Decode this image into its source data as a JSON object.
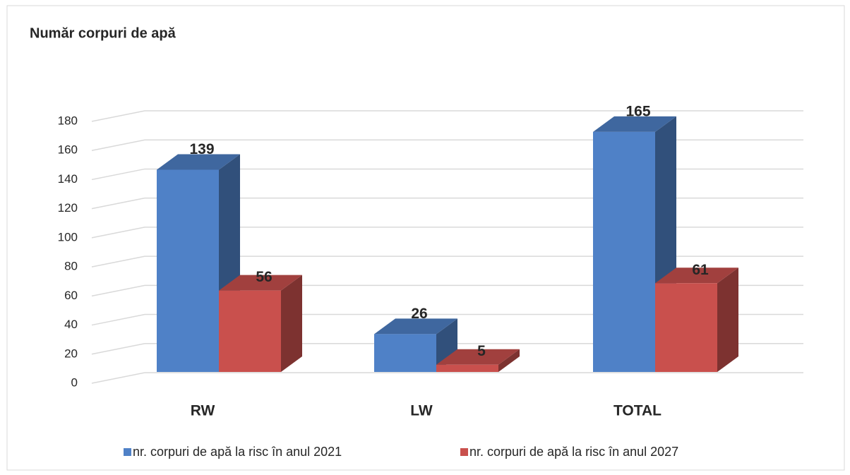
{
  "chart_data": {
    "type": "bar3d",
    "title": "Număr corpuri de apă",
    "categories": [
      "RW",
      "LW",
      "TOTAL"
    ],
    "series": [
      {
        "name": "nr. corpuri de apă la risc în anul 2021",
        "color": "#4f81c7",
        "values": [
          139,
          26,
          165
        ]
      },
      {
        "name": "nr. corpuri de apă la risc în anul 2027",
        "color": "#c9504d",
        "values": [
          56,
          5,
          61
        ]
      }
    ],
    "ylim": [
      0,
      180
    ],
    "yticks": [
      0,
      20,
      40,
      60,
      80,
      100,
      120,
      140,
      160,
      180
    ],
    "grid": true,
    "legend": "bottom"
  }
}
